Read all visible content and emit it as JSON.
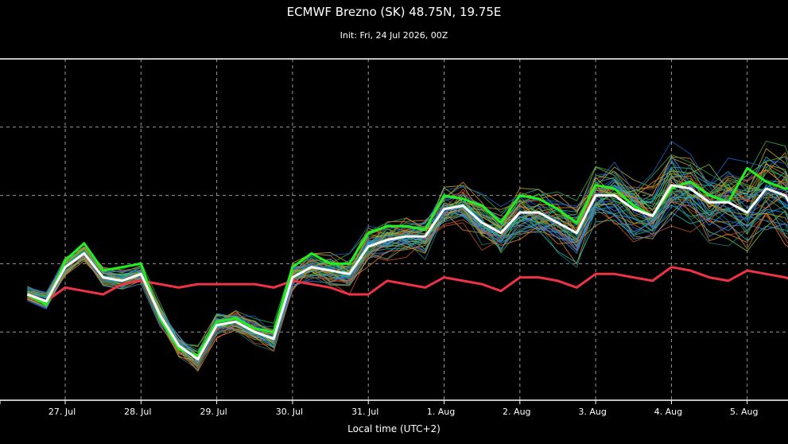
{
  "chart_data": {
    "type": "line",
    "title": "ECMWF Brezno (SK) 48.75N, 19.75E",
    "subtitle": "Init: Fri, 24 Jul 2026, 00Z",
    "xlabel": "Local time (UTC+2)",
    "ylabel": "",
    "x_ticks": [
      "27. Jul",
      "28. Jul",
      "29. Jul",
      "30. Jul",
      "31. Jul",
      "1. Aug",
      "2. Aug",
      "3. Aug",
      "4. Aug",
      "5. Aug"
    ],
    "x": [
      "26 Jul 12:00",
      "26 Jul 18:00",
      "27 Jul 00:00",
      "27 Jul 06:00",
      "27 Jul 12:00",
      "27 Jul 18:00",
      "28 Jul 00:00",
      "28 Jul 06:00",
      "28 Jul 12:00",
      "28 Jul 18:00",
      "29 Jul 00:00",
      "29 Jul 06:00",
      "29 Jul 12:00",
      "29 Jul 18:00",
      "30 Jul 00:00",
      "30 Jul 06:00",
      "30 Jul 12:00",
      "30 Jul 18:00",
      "31 Jul 00:00",
      "31 Jul 06:00",
      "31 Jul 12:00",
      "31 Jul 18:00",
      "1 Aug 00:00",
      "1 Aug 06:00",
      "1 Aug 12:00",
      "1 Aug 18:00",
      "2 Aug 00:00",
      "2 Aug 06:00",
      "2 Aug 12:00",
      "2 Aug 18:00",
      "3 Aug 00:00",
      "3 Aug 06:00",
      "3 Aug 12:00",
      "3 Aug 18:00",
      "4 Aug 00:00",
      "4 Aug 06:00",
      "4 Aug 12:00",
      "4 Aug 18:00",
      "5 Aug 00:00",
      "5 Aug 06:00",
      "5 Aug 12:00",
      "5 Aug 18:00",
      "6 Aug 00:00"
    ],
    "series": [
      {
        "role": "mean",
        "color": "#ffffff",
        "values": [
          3.1,
          2.9,
          3.9,
          4.3,
          3.6,
          3.5,
          3.7,
          2.5,
          1.6,
          1.2,
          2.2,
          2.3,
          2.0,
          1.8,
          3.6,
          3.9,
          3.8,
          3.7,
          4.5,
          4.7,
          4.8,
          4.8,
          5.6,
          5.7,
          5.2,
          4.9,
          5.5,
          5.5,
          5.2,
          4.9,
          6.0,
          6.0,
          5.6,
          5.4,
          6.3,
          6.2,
          5.8,
          5.8,
          5.5,
          6.2,
          6.0,
          5.1,
          5.8
        ]
      },
      {
        "role": "control",
        "color": "#22ee22",
        "values": [
          3.1,
          2.8,
          4.1,
          4.6,
          3.8,
          3.9,
          4.0,
          2.4,
          1.5,
          1.3,
          2.3,
          2.4,
          2.1,
          2.0,
          3.9,
          4.3,
          4.0,
          4.0,
          4.9,
          5.1,
          5.1,
          5.0,
          6.0,
          5.9,
          5.7,
          5.2,
          6.0,
          5.9,
          5.6,
          5.2,
          6.3,
          6.2,
          5.7,
          5.4,
          6.2,
          6.4,
          6.0,
          5.8,
          6.8,
          6.4,
          6.2,
          6.2,
          6.6
        ]
      },
      {
        "role": "climate",
        "color": "#ee3344",
        "values": [
          3.1,
          2.9,
          3.3,
          3.2,
          3.1,
          3.4,
          3.5,
          3.4,
          3.3,
          3.4,
          3.4,
          3.4,
          3.4,
          3.3,
          3.5,
          3.4,
          3.3,
          3.1,
          3.1,
          3.5,
          3.4,
          3.3,
          3.6,
          3.5,
          3.4,
          3.2,
          3.6,
          3.6,
          3.5,
          3.3,
          3.7,
          3.7,
          3.6,
          3.5,
          3.9,
          3.8,
          3.6,
          3.5,
          3.8,
          3.7,
          3.6,
          3.4,
          3.5
        ]
      }
    ],
    "ensemble_members": 50,
    "ensemble_colors": [
      "#1b5fbf",
      "#2a8fd8",
      "#2bb3b0",
      "#3ca34a",
      "#7ab83a",
      "#b9a12e",
      "#d08030",
      "#c04a2a",
      "#1f7a6e",
      "#4d7fd6"
    ],
    "ylim": [
      0,
      10
    ],
    "grid": true,
    "legend": "none"
  }
}
